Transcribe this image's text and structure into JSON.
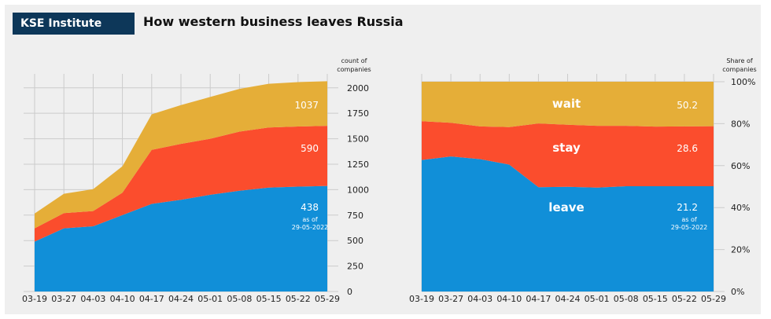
{
  "header": {
    "badge": "KSE Institute",
    "title": "How western business leaves Russia"
  },
  "colors": {
    "leave": "#118fd8",
    "stay": "#fb4d2d",
    "wait": "#e5ae38",
    "grid": "#cbcbcb",
    "background": "#efefef"
  },
  "chart_data": [
    {
      "type": "area",
      "stacked": true,
      "ylabel": "count of companies",
      "ylim": [
        0,
        2060
      ],
      "yticks": [
        0,
        250,
        500,
        750,
        1000,
        1250,
        1500,
        1750,
        2000
      ],
      "ytick_labels": [
        "0",
        "250",
        "500",
        "750",
        "1000",
        "1250",
        "1500",
        "1750",
        "2000"
      ],
      "categories": [
        "03-19",
        "03-27",
        "04-03",
        "04-10",
        "04-17",
        "04-24",
        "05-01",
        "05-08",
        "05-15",
        "05-22",
        "05-29"
      ],
      "series": [
        {
          "name": "leave",
          "values": [
            490,
            620,
            640,
            750,
            860,
            900,
            950,
            990,
            1020,
            1030,
            1037
          ]
        },
        {
          "name": "stay",
          "values": [
            130,
            150,
            150,
            220,
            530,
            550,
            550,
            580,
            590,
            590,
            590
          ]
        },
        {
          "name": "wait",
          "values": [
            145,
            190,
            215,
            260,
            350,
            380,
            410,
            420,
            430,
            436,
            438
          ]
        }
      ],
      "labels": [
        "1037",
        "590",
        "438"
      ],
      "note": [
        "as of",
        "29-05-2022"
      ]
    },
    {
      "type": "area",
      "stacked": true,
      "ylabel": "Share of companies",
      "ylim": [
        0,
        100
      ],
      "yticks": [
        0,
        20,
        40,
        60,
        80,
        100
      ],
      "ytick_labels": [
        "0%",
        "20%",
        "40%",
        "60%",
        "80%",
        "100%"
      ],
      "categories": [
        "03-19",
        "03-27",
        "04-03",
        "04-10",
        "04-17",
        "04-24",
        "05-01",
        "05-08",
        "05-15",
        "05-22",
        "05-29"
      ],
      "series": [
        {
          "name": "leave",
          "values": [
            62.7,
            64.4,
            63.1,
            60.5,
            49.7,
            49.9,
            49.5,
            50.2,
            50.2,
            50.2,
            50.2
          ]
        },
        {
          "name": "stay",
          "values": [
            18.5,
            16.0,
            15.6,
            17.9,
            30.4,
            29.6,
            29.5,
            28.8,
            28.4,
            28.5,
            28.6
          ]
        },
        {
          "name": "wait",
          "values": [
            18.8,
            19.6,
            21.3,
            21.6,
            19.9,
            20.5,
            21.0,
            21.0,
            21.4,
            21.3,
            21.2
          ]
        }
      ],
      "series_names": [
        "leave",
        "stay",
        "wait"
      ],
      "labels": [
        "50.2",
        "28.6",
        "21.2"
      ],
      "note": [
        "as of",
        "29-05-2022"
      ]
    }
  ]
}
